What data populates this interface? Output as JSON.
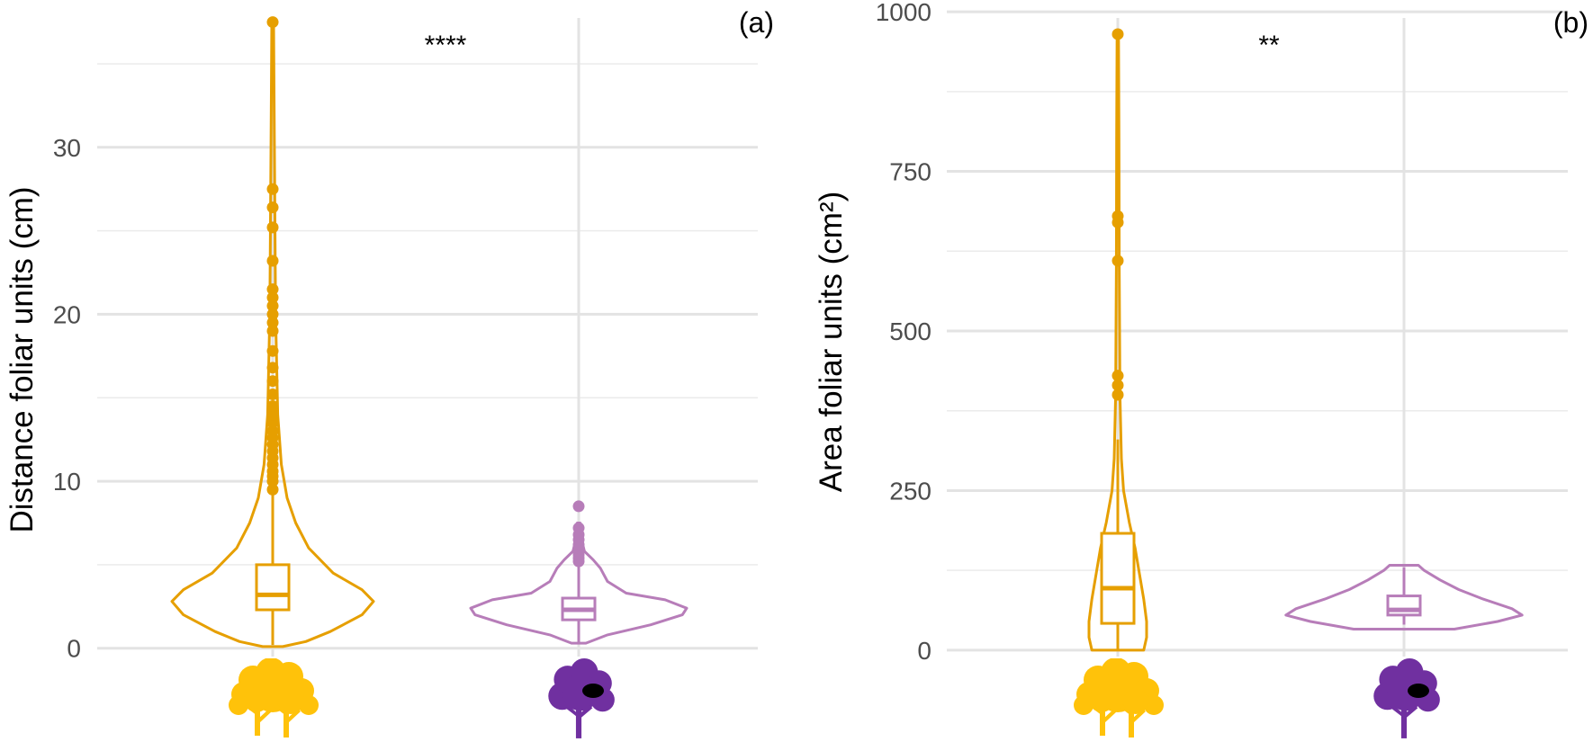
{
  "chart_data": [
    {
      "type": "violin",
      "panel_label": "(a)",
      "ylabel": "Distance foliar units (cm)",
      "xlabel": "",
      "ylim": [
        -0.5,
        38.5
      ],
      "y_ticks": [
        0,
        10,
        20,
        30
      ],
      "y_tick_labels": [
        "0",
        "10",
        "20",
        "30"
      ],
      "grid": true,
      "significance": "****",
      "groups": [
        {
          "icon": "yellow-tree-icon",
          "color": "#E69F00",
          "icon_color": "#FFC20A",
          "box": {
            "min": 0.2,
            "q1": 2.3,
            "median": 3.2,
            "q3": 5.0,
            "max": 9.2
          },
          "violin_half_width": [
            [
              0.1,
              0.07
            ],
            [
              0.4,
              0.23
            ],
            [
              1.0,
              0.4
            ],
            [
              2.0,
              0.62
            ],
            [
              2.8,
              0.7
            ],
            [
              3.5,
              0.62
            ],
            [
              4.5,
              0.42
            ],
            [
              6.0,
              0.25
            ],
            [
              7.5,
              0.16
            ],
            [
              9.0,
              0.1
            ],
            [
              11,
              0.06
            ],
            [
              14,
              0.035
            ],
            [
              20,
              0.02
            ],
            [
              30,
              0.012
            ],
            [
              37.5,
              0.006
            ]
          ],
          "outliers": [
            9.5,
            10,
            10.3,
            10.6,
            11,
            11.4,
            11.8,
            12.2,
            12.6,
            13,
            13.5,
            14,
            14.5,
            15.2,
            16,
            16.8,
            17.8,
            19,
            19.5,
            20,
            20.5,
            21,
            21.5,
            23.2,
            25.2,
            26.4,
            27.5,
            37.5
          ]
        },
        {
          "icon": "purple-tree-with-black-spot-icon",
          "color": "#B77DB9",
          "icon_color": "#7030A0",
          "box": {
            "min": 0.3,
            "q1": 1.7,
            "median": 2.3,
            "q3": 3.0,
            "max": 5.0
          },
          "violin_half_width": [
            [
              0.3,
              0.05
            ],
            [
              0.8,
              0.2
            ],
            [
              1.4,
              0.5
            ],
            [
              2.0,
              0.72
            ],
            [
              2.4,
              0.75
            ],
            [
              2.9,
              0.6
            ],
            [
              3.3,
              0.33
            ],
            [
              4.0,
              0.2
            ],
            [
              4.8,
              0.15
            ],
            [
              5.3,
              0.1
            ],
            [
              5.8,
              0.04
            ],
            [
              6.5,
              0.02
            ],
            [
              7.5,
              0.01
            ]
          ],
          "outliers": [
            5.2,
            5.4,
            5.6,
            5.8,
            6.0,
            6.2,
            6.5,
            6.8,
            7.2,
            8.5
          ]
        }
      ]
    },
    {
      "type": "violin",
      "panel_label": "(b)",
      "ylabel": "Area foliar units (cm²)",
      "xlabel": "",
      "ylim": [
        -10,
        1010
      ],
      "y_ticks": [
        0,
        250,
        500,
        750,
        1000
      ],
      "y_tick_labels": [
        "0",
        "250",
        "500",
        "750",
        "1000"
      ],
      "grid": true,
      "significance": "**",
      "groups": [
        {
          "icon": "yellow-tree-icon",
          "color": "#E69F00",
          "icon_color": "#FFC20A",
          "box": {
            "min": 0,
            "q1": 42,
            "median": 97,
            "q3": 183,
            "max": 330
          },
          "violin_half_width": [
            [
              0,
              0.18
            ],
            [
              20,
              0.2
            ],
            [
              45,
              0.2
            ],
            [
              80,
              0.18
            ],
            [
              120,
              0.15
            ],
            [
              160,
              0.12
            ],
            [
              200,
              0.08
            ],
            [
              250,
              0.04
            ],
            [
              300,
              0.025
            ],
            [
              400,
              0.015
            ],
            [
              600,
              0.01
            ],
            [
              800,
              0.008
            ],
            [
              965,
              0.005
            ]
          ],
          "outliers": [
            400,
            415,
            430,
            610,
            670,
            680,
            965
          ]
        },
        {
          "icon": "purple-tree-with-black-spot-icon",
          "color": "#B77DB9",
          "icon_color": "#7030A0",
          "box": {
            "min": 40,
            "q1": 55,
            "median": 63,
            "q3": 85,
            "max": 130
          },
          "violin_half_width": [
            [
              33,
              0.35
            ],
            [
              45,
              0.65
            ],
            [
              55,
              0.82
            ],
            [
              65,
              0.75
            ],
            [
              80,
              0.55
            ],
            [
              95,
              0.38
            ],
            [
              110,
              0.25
            ],
            [
              125,
              0.14
            ],
            [
              133,
              0.1
            ]
          ],
          "outliers": []
        }
      ]
    }
  ]
}
